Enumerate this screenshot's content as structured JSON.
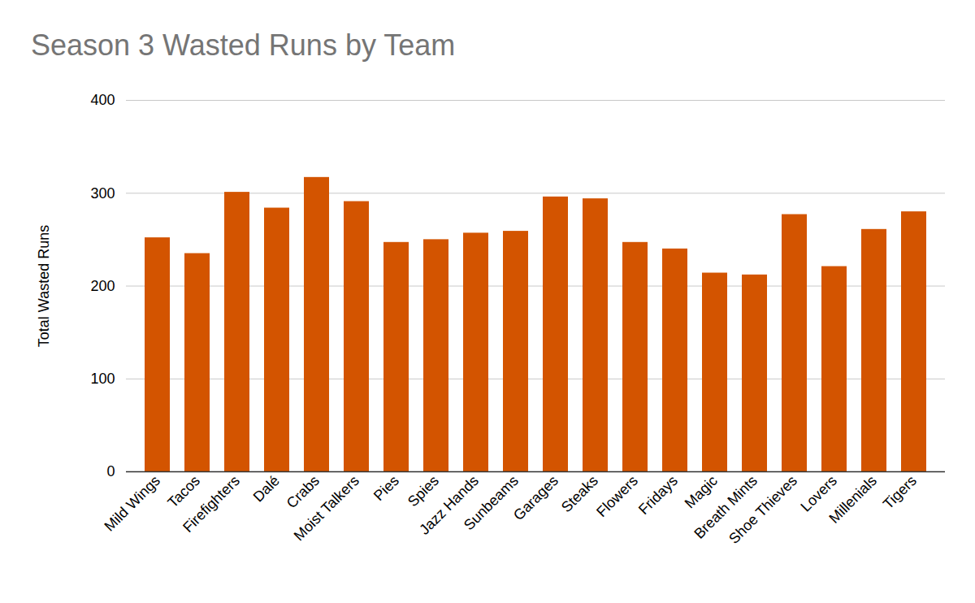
{
  "chart_data": {
    "type": "bar",
    "title": "Season 3 Wasted Runs by Team",
    "y_label": "Total Wasted Runs",
    "categories": [
      "Mild Wings",
      "Tacos",
      "Firefighters",
      "Dalé",
      "Crabs",
      "Moist Talkers",
      "Pies",
      "Spies",
      "Jazz Hands",
      "Sunbeams",
      "Garages",
      "Steaks",
      "Flowers",
      "Fridays",
      "Magic",
      "Breath Mints",
      "Shoe Thieves",
      "Lovers",
      "Millenials",
      "Tigers"
    ],
    "values": [
      252,
      235,
      301,
      284,
      317,
      291,
      247,
      250,
      257,
      259,
      296,
      294,
      247,
      240,
      214,
      212,
      277,
      221,
      261,
      280
    ],
    "color": "#d35400",
    "ylim": [
      0,
      400
    ],
    "yticks": [
      0,
      100,
      200,
      300,
      400
    ],
    "grid": true
  }
}
